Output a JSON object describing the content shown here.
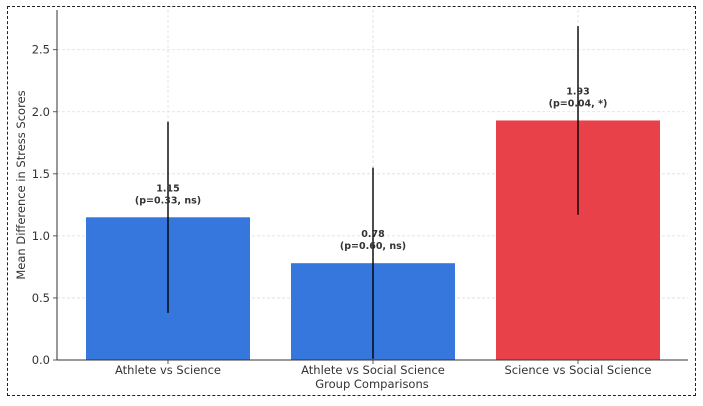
{
  "chart_data": {
    "type": "bar",
    "title": "",
    "xlabel": "Group Comparisons",
    "ylabel": "Mean Difference in Stress Scores",
    "categories": [
      "Athlete vs Science",
      "Athlete vs Social Science",
      "Science vs Social Science"
    ],
    "values": [
      1.15,
      0.78,
      1.93
    ],
    "errors": [
      0.77,
      0.77,
      0.76
    ],
    "p_values": [
      0.33,
      0.6,
      0.04
    ],
    "significance": [
      "ns",
      "ns",
      "*"
    ],
    "data_labels": [
      {
        "value": "1.15",
        "note": "(p=0.33, ns)"
      },
      {
        "value": "0.78",
        "note": "(p=0.60, ns)"
      },
      {
        "value": "1.93",
        "note": "(p=0.04, *)"
      }
    ],
    "bar_colors": [
      "#3677dd",
      "#3677dd",
      "#e8414a"
    ],
    "ylim": [
      0,
      2.82
    ],
    "yticks": [
      0.0,
      0.5,
      1.0,
      1.5,
      2.0,
      2.5
    ],
    "ytick_labels": [
      "0.0",
      "0.5",
      "1.0",
      "1.5",
      "2.0",
      "2.5"
    ],
    "grid": true,
    "legend": "none"
  }
}
